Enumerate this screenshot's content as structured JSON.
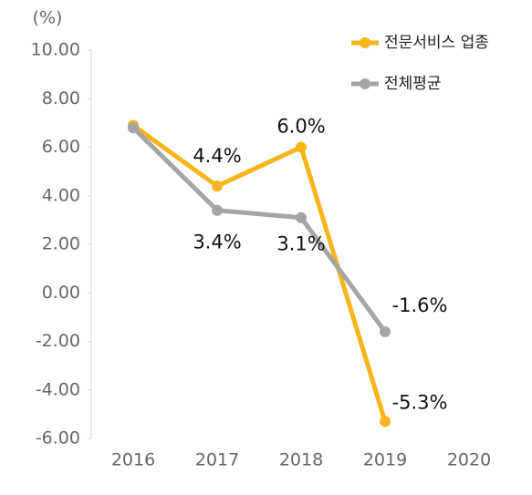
{
  "chart_data": {
    "type": "line",
    "y_axis_label": "(%)",
    "categories": [
      "2016",
      "2017",
      "2018",
      "2019",
      "2020"
    ],
    "series": [
      {
        "name": "전문서비스 업종",
        "color": "#f6b61b",
        "values": [
          6.9,
          4.4,
          6.0,
          -5.3,
          null
        ],
        "value_labels": [
          null,
          "4.4%",
          "6.0%",
          "-5.3%",
          null
        ]
      },
      {
        "name": "전체평균",
        "color": "#a5a5a5",
        "values": [
          6.8,
          3.4,
          3.1,
          -1.6,
          null
        ],
        "value_labels": [
          null,
          "3.4%",
          "3.1%",
          "-1.6%",
          null
        ]
      }
    ],
    "ylim": [
      -6,
      10
    ],
    "yticks": [
      {
        "value": 10,
        "label": "10.00"
      },
      {
        "value": 8,
        "label": "8.00"
      },
      {
        "value": 6,
        "label": "6.00"
      },
      {
        "value": 4,
        "label": "4.00"
      },
      {
        "value": 2,
        "label": "2.00"
      },
      {
        "value": 0,
        "label": "0.00"
      },
      {
        "value": -2,
        "label": "-2.00"
      },
      {
        "value": -4,
        "label": "-4.00"
      },
      {
        "value": -6,
        "label": "-6.00"
      }
    ],
    "legend": "top-right"
  }
}
